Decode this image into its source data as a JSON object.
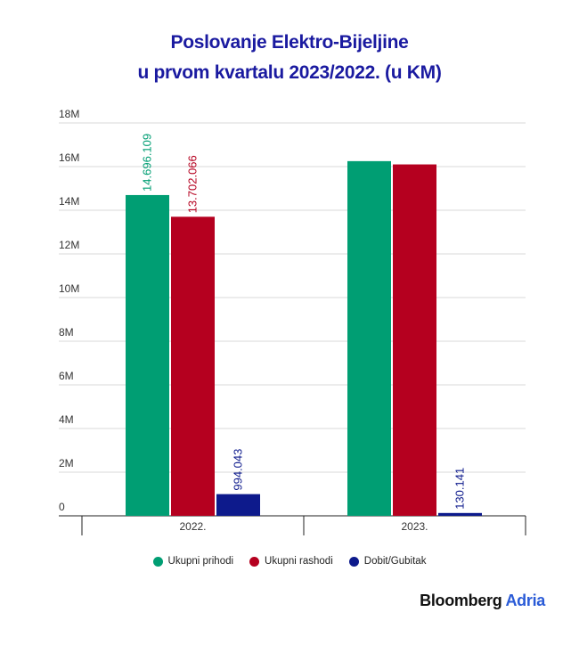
{
  "title_line1": "Poslovanje Elektro-Bijeljine",
  "title_line2": "u prvom kvartalu 2023/2022. (u KM)",
  "brand": {
    "name": "Bloomberg",
    "suffix": "Adria"
  },
  "chart_data": {
    "type": "bar",
    "categories": [
      "2022.",
      "2023."
    ],
    "ylim": [
      0,
      18000000
    ],
    "yticks": [
      {
        "value": 0,
        "label": "0"
      },
      {
        "value": 2000000,
        "label": "2M"
      },
      {
        "value": 4000000,
        "label": "4M"
      },
      {
        "value": 6000000,
        "label": "6M"
      },
      {
        "value": 8000000,
        "label": "8M"
      },
      {
        "value": 10000000,
        "label": "10M"
      },
      {
        "value": 12000000,
        "label": "12M"
      },
      {
        "value": 14000000,
        "label": "14M"
      },
      {
        "value": 16000000,
        "label": "16M"
      },
      {
        "value": 18000000,
        "label": "18M"
      }
    ],
    "grid": true,
    "legend_position": "bottom",
    "series": [
      {
        "name": "Ukupni prihodi",
        "color": "#009e73",
        "values": [
          14696109,
          16250000
        ],
        "labels": [
          "14.696.109",
          ""
        ]
      },
      {
        "name": "Ukupni rashodi",
        "color": "#b5001f",
        "values": [
          13702066,
          16100000
        ],
        "labels": [
          "13.702.066",
          ""
        ]
      },
      {
        "name": "Dobit/Gubitak",
        "color": "#0d1a8c",
        "values": [
          994043,
          130141
        ],
        "labels": [
          "994.043",
          "130.141"
        ]
      }
    ]
  }
}
